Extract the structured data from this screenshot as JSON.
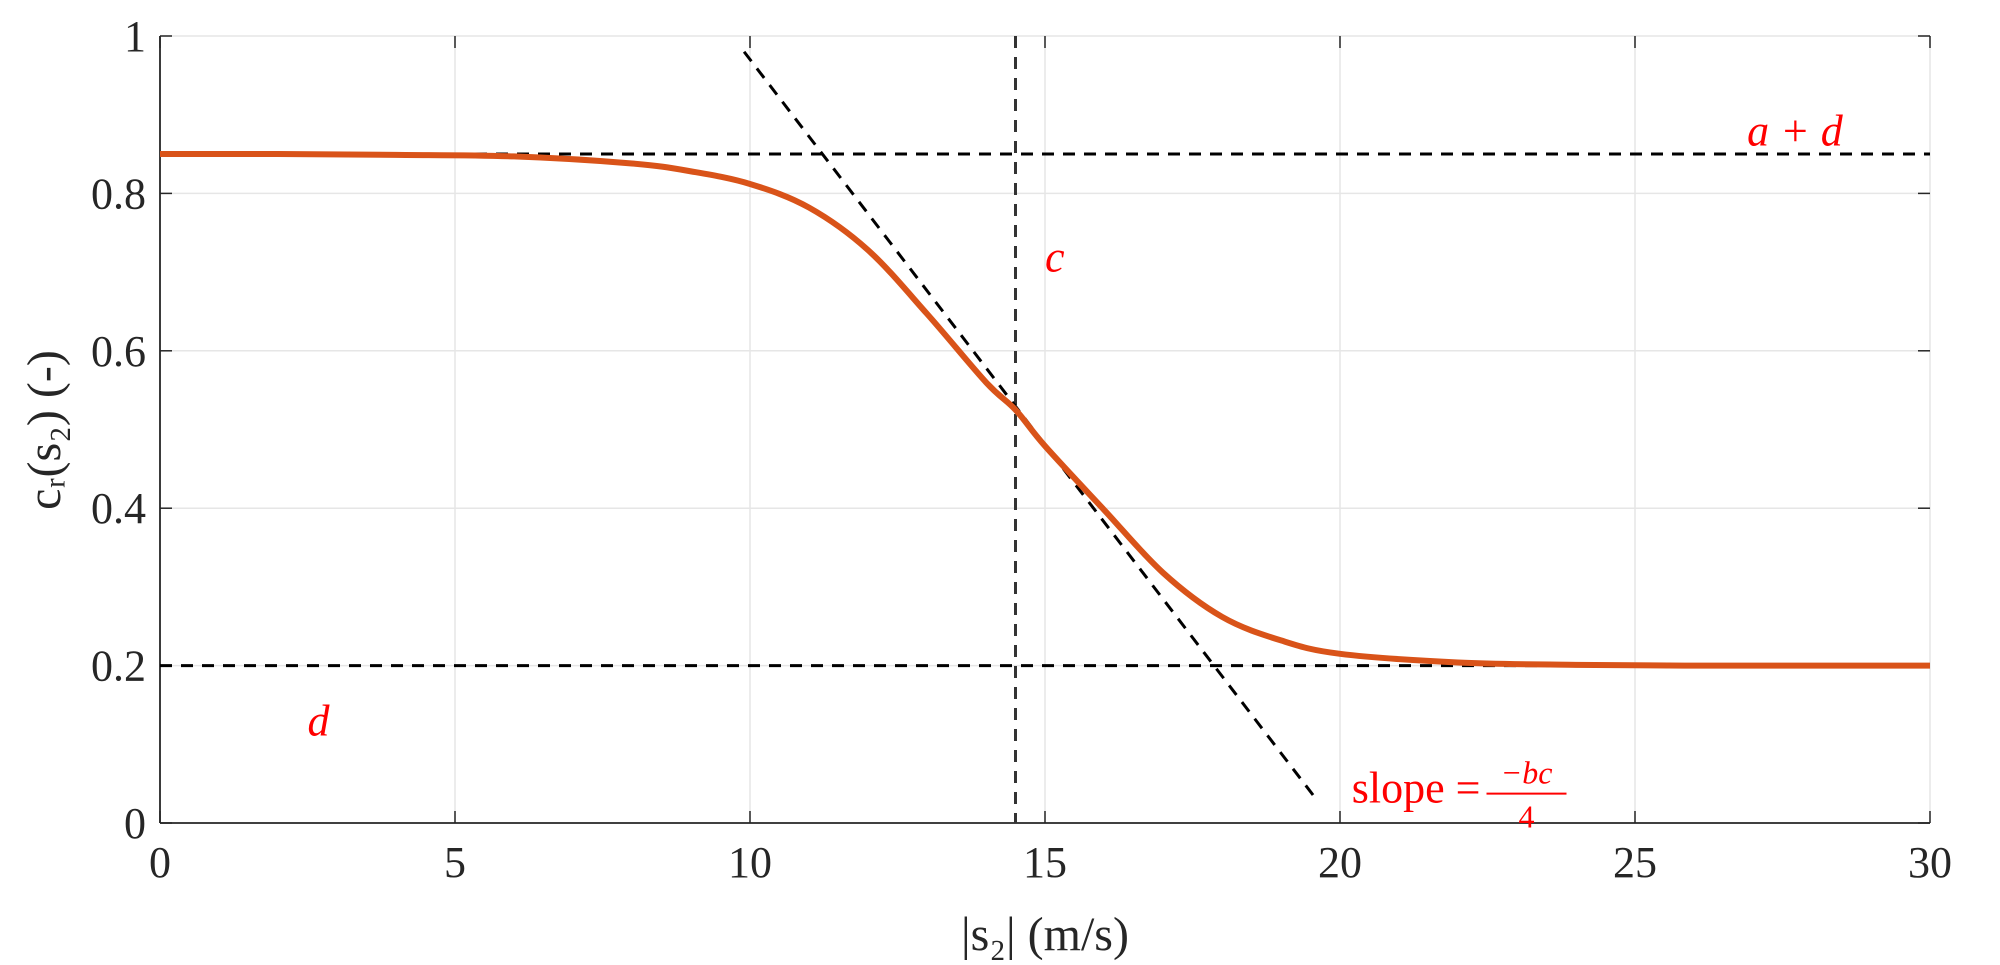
{
  "chart_data": {
    "type": "line",
    "xlabel": "|s₂| (m/s)",
    "ylabel": "cᵣ(s₂) (-)",
    "xlim": [
      0,
      30
    ],
    "ylim": [
      0,
      1
    ],
    "x_ticks": [
      "0",
      "5",
      "10",
      "15",
      "20",
      "25",
      "30"
    ],
    "y_ticks": [
      "0",
      "0.2",
      "0.4",
      "0.6",
      "0.8",
      "1"
    ],
    "grid": true,
    "series": [
      {
        "style": "solid",
        "color": "#d95319",
        "x": [
          0,
          2,
          4,
          6,
          8,
          9,
          10,
          11,
          12,
          13,
          14,
          14.5,
          15,
          16,
          17,
          18,
          19,
          20,
          22,
          24,
          26,
          28,
          30
        ],
        "y": [
          0.85,
          0.85,
          0.849,
          0.847,
          0.838,
          0.828,
          0.812,
          0.782,
          0.728,
          0.647,
          0.56,
          0.525,
          0.479,
          0.398,
          0.318,
          0.262,
          0.232,
          0.215,
          0.204,
          0.201,
          0.2,
          0.2,
          0.2
        ]
      }
    ],
    "reference_lines": [
      {
        "kind": "horizontal",
        "y": 0.85,
        "style": "dashed",
        "color": "#000000"
      },
      {
        "kind": "horizontal",
        "y": 0.2,
        "style": "dashed",
        "color": "#000000"
      },
      {
        "kind": "vertical",
        "x": 14.5,
        "style": "dashed",
        "color": "#333333"
      },
      {
        "kind": "segment",
        "x": [
          9.9,
          19.6
        ],
        "y": [
          0.98,
          0.03
        ],
        "style": "dashed",
        "color": "#000000"
      }
    ],
    "annotations": [
      {
        "text": "a + d",
        "x": 26.9,
        "y": 0.88,
        "italic": true
      },
      {
        "text": "c",
        "x": 15.0,
        "y": 0.72,
        "italic": true
      },
      {
        "text": "d",
        "x": 2.5,
        "y": 0.13,
        "italic": true
      },
      {
        "text": "slope = ",
        "x": 20.2,
        "y": 0.045,
        "italic": false,
        "fraction": {
          "numerator": "−bc",
          "denominator": "4"
        }
      }
    ]
  }
}
